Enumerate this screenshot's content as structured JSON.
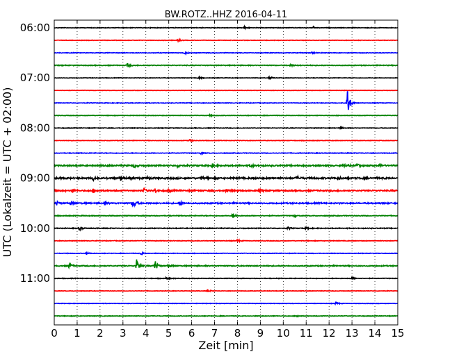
{
  "chart_data": {
    "type": "line",
    "title": "BW.ROTZ..HHZ 2016-04-11",
    "xlabel": "Zeit  [min]",
    "ylabel": "UTC (Lokalzeit = UTC + 02:00)",
    "xlim": [
      0,
      15
    ],
    "x_ticks": [
      0,
      1,
      2,
      3,
      4,
      5,
      6,
      7,
      8,
      9,
      10,
      11,
      12,
      13,
      14,
      15
    ],
    "grid": "vertical dotted",
    "colors": [
      "#000000",
      "#ff0000",
      "#0000ff",
      "#008000"
    ],
    "y_tick_labels": [
      {
        "row": 0,
        "label": "06:00"
      },
      {
        "row": 4,
        "label": "07:00"
      },
      {
        "row": 8,
        "label": "08:00"
      },
      {
        "row": 12,
        "label": "09:00"
      },
      {
        "row": 16,
        "label": "10:00"
      },
      {
        "row": 20,
        "label": "11:00"
      }
    ],
    "traces": [
      {
        "start": "06:00",
        "noise": 0.5,
        "events": [
          {
            "t": 8.3,
            "amp": 1.5
          },
          {
            "t": 11.3,
            "amp": 1.2
          }
        ]
      },
      {
        "start": "06:15",
        "noise": 0.4,
        "events": [
          {
            "t": 5.4,
            "amp": 2
          }
        ]
      },
      {
        "start": "06:30",
        "noise": 0.5,
        "events": [
          {
            "t": 5.7,
            "amp": 2.2
          },
          {
            "t": 11.2,
            "amp": 1.5
          }
        ]
      },
      {
        "start": "06:45",
        "noise": 0.6,
        "events": [
          {
            "t": 3.2,
            "amp": 2.5
          },
          {
            "t": 10.3,
            "amp": 2
          }
        ]
      },
      {
        "start": "07:00",
        "noise": 0.4,
        "events": [
          {
            "t": 6.3,
            "amp": 1.5
          },
          {
            "t": 9.4,
            "amp": 1.8
          }
        ]
      },
      {
        "start": "07:15",
        "noise": 0.3,
        "events": []
      },
      {
        "start": "07:30",
        "noise": 0.5,
        "events": [
          {
            "t": 12.8,
            "amp": 22
          }
        ]
      },
      {
        "start": "07:45",
        "noise": 0.4,
        "events": [
          {
            "t": 6.8,
            "amp": 1.2
          }
        ]
      },
      {
        "start": "08:00",
        "noise": 0.5,
        "events": [
          {
            "t": 12.5,
            "amp": 1.2
          }
        ]
      },
      {
        "start": "08:15",
        "noise": 0.4,
        "events": [
          {
            "t": 5.9,
            "amp": 2
          }
        ]
      },
      {
        "start": "08:30",
        "noise": 0.5,
        "events": [
          {
            "t": 6.4,
            "amp": 1.5
          }
        ]
      },
      {
        "start": "08:45",
        "noise": 1.1,
        "events": [
          {
            "t": 3.5,
            "amp": 2.5
          },
          {
            "t": 5.4,
            "amp": 2.5
          },
          {
            "t": 6.9,
            "amp": 2.5
          },
          {
            "t": 8.6,
            "amp": 2
          },
          {
            "t": 12.6,
            "amp": 3.5
          },
          {
            "t": 13.2,
            "amp": 2.5
          },
          {
            "t": 14.2,
            "amp": 2.5
          }
        ]
      },
      {
        "start": "09:00",
        "noise": 1.3,
        "events": [
          {
            "t": 1.7,
            "amp": 2.5
          },
          {
            "t": 2.9,
            "amp": 2.5
          },
          {
            "t": 4.1,
            "amp": 2.5
          },
          {
            "t": 6.4,
            "amp": 2.5
          },
          {
            "t": 10.6,
            "amp": 2.5
          },
          {
            "t": 12.4,
            "amp": 2
          }
        ]
      },
      {
        "start": "09:15",
        "noise": 1.1,
        "events": [
          {
            "t": 0.8,
            "amp": 3
          },
          {
            "t": 1.7,
            "amp": 3
          },
          {
            "t": 3.9,
            "amp": 3
          },
          {
            "t": 4.4,
            "amp": 3
          },
          {
            "t": 5.0,
            "amp": 2
          },
          {
            "t": 7.5,
            "amp": 2.5
          },
          {
            "t": 9.0,
            "amp": 2
          }
        ]
      },
      {
        "start": "09:30",
        "noise": 1.0,
        "events": [
          {
            "t": 0.1,
            "amp": 3
          },
          {
            "t": 0.7,
            "amp": 2.5
          },
          {
            "t": 2.2,
            "amp": 3
          },
          {
            "t": 3.4,
            "amp": 3.5
          },
          {
            "t": 3.5,
            "amp": 3.5
          },
          {
            "t": 5.5,
            "amp": 2.5
          }
        ]
      },
      {
        "start": "09:45",
        "noise": 0.6,
        "events": [
          {
            "t": 7.8,
            "amp": 3.5
          },
          {
            "t": 10.5,
            "amp": 1.5
          }
        ]
      },
      {
        "start": "10:00",
        "noise": 0.6,
        "events": [
          {
            "t": 1.1,
            "amp": 2.5
          },
          {
            "t": 10.2,
            "amp": 2
          },
          {
            "t": 11.0,
            "amp": 1.8
          }
        ]
      },
      {
        "start": "10:15",
        "noise": 0.5,
        "events": [
          {
            "t": 8.0,
            "amp": 1.8
          }
        ]
      },
      {
        "start": "10:30",
        "noise": 0.4,
        "events": [
          {
            "t": 1.4,
            "amp": 2
          },
          {
            "t": 3.8,
            "amp": 2.2
          }
        ]
      },
      {
        "start": "10:45",
        "noise": 0.8,
        "events": [
          {
            "t": 0.65,
            "amp": 4
          },
          {
            "t": 3.6,
            "amp": 9
          },
          {
            "t": 4.4,
            "amp": 8
          },
          {
            "t": 5.0,
            "amp": 3
          }
        ]
      },
      {
        "start": "11:00",
        "noise": 0.5,
        "events": [
          {
            "t": 4.9,
            "amp": 1.5
          },
          {
            "t": 13.0,
            "amp": 2.5
          }
        ]
      },
      {
        "start": "11:15",
        "noise": 0.4,
        "events": [
          {
            "t": 6.7,
            "amp": 2
          }
        ]
      },
      {
        "start": "11:30",
        "noise": 0.4,
        "events": [
          {
            "t": 12.3,
            "amp": 2
          }
        ]
      },
      {
        "start": "11:45",
        "noise": 0.5,
        "events": [
          {
            "t": 10.6,
            "amp": 1.5
          }
        ]
      }
    ]
  }
}
